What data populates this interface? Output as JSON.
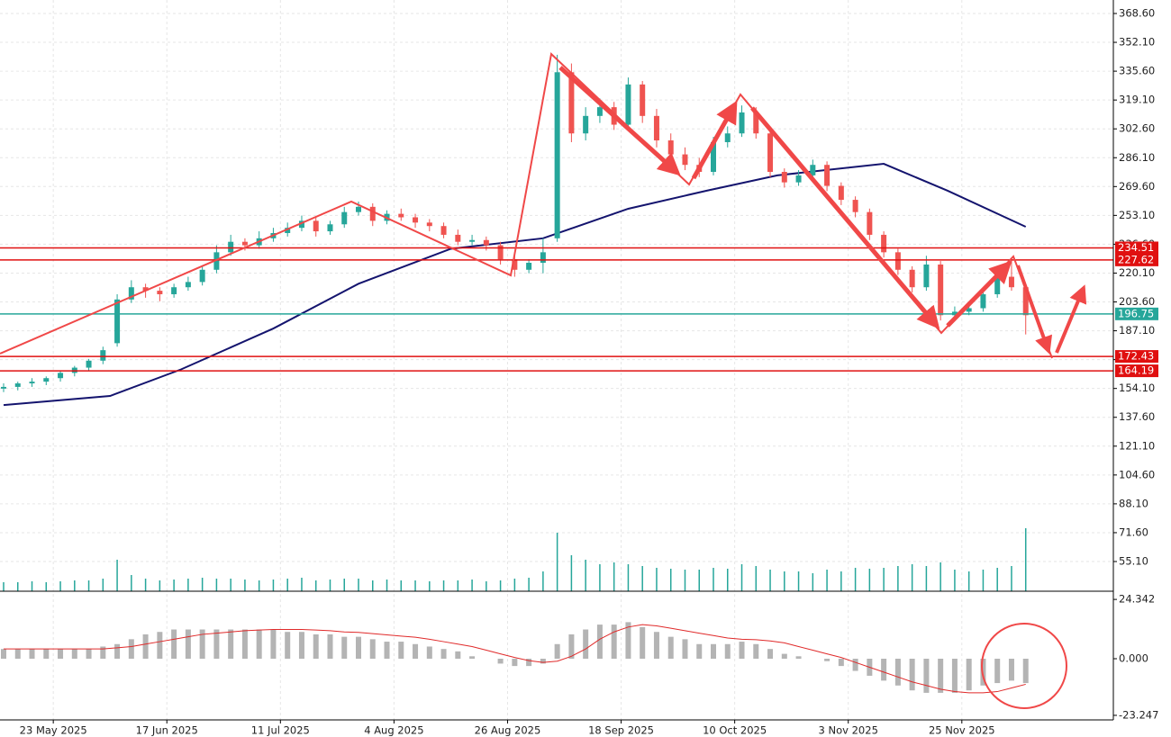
{
  "chart_data": {
    "type": "candlestick",
    "x": [
      0,
      2,
      4,
      6,
      8,
      10,
      12,
      14,
      16,
      18,
      20,
      22,
      24,
      26,
      28,
      30,
      32,
      34,
      36,
      38,
      40,
      42,
      44,
      46,
      48,
      50,
      52,
      54,
      56,
      58,
      60,
      62,
      64,
      66,
      68,
      70,
      72,
      74,
      76,
      78,
      80,
      82,
      84,
      86,
      88,
      90,
      92,
      94,
      96,
      98,
      100,
      102,
      104,
      106,
      108,
      110,
      112,
      114,
      116,
      118,
      120,
      122,
      124,
      126,
      128,
      130,
      132,
      134,
      136,
      138,
      140,
      142,
      144
    ],
    "candles": [
      [
        154,
        157,
        152,
        155
      ],
      [
        155,
        158,
        153,
        157
      ],
      [
        157,
        160,
        155,
        158
      ],
      [
        158,
        161,
        156,
        160
      ],
      [
        160,
        164,
        158,
        163
      ],
      [
        163,
        167,
        161,
        166
      ],
      [
        166,
        171,
        164,
        170
      ],
      [
        170,
        178,
        168,
        176
      ],
      [
        180,
        208,
        178,
        205
      ],
      [
        205,
        216,
        203,
        212
      ],
      [
        212,
        214,
        206,
        210
      ],
      [
        210,
        212,
        204,
        208
      ],
      [
        208,
        214,
        206,
        212
      ],
      [
        212,
        218,
        210,
        215
      ],
      [
        215,
        224,
        213,
        222
      ],
      [
        222,
        236,
        220,
        232
      ],
      [
        232,
        242,
        230,
        238
      ],
      [
        238,
        240,
        233,
        236
      ],
      [
        236,
        244,
        234,
        240
      ],
      [
        240,
        246,
        238,
        243
      ],
      [
        243,
        249,
        241,
        246
      ],
      [
        246,
        253,
        244,
        250
      ],
      [
        250,
        252,
        241,
        244
      ],
      [
        244,
        250,
        242,
        248
      ],
      [
        248,
        258,
        246,
        255
      ],
      [
        255,
        261,
        253,
        258
      ],
      [
        258,
        260,
        247,
        250
      ],
      [
        250,
        256,
        248,
        254
      ],
      [
        254,
        257,
        250,
        252
      ],
      [
        252,
        254,
        246,
        249
      ],
      [
        249,
        251,
        244,
        247
      ],
      [
        247,
        249,
        240,
        242
      ],
      [
        242,
        245,
        236,
        238
      ],
      [
        238,
        242,
        236,
        239
      ],
      [
        239,
        241,
        233,
        236
      ],
      [
        236,
        238,
        225,
        228
      ],
      [
        228,
        232,
        218,
        222
      ],
      [
        222,
        228,
        220,
        226
      ],
      [
        226,
        240,
        220,
        232
      ],
      [
        240,
        345,
        238,
        335
      ],
      [
        335,
        340,
        295,
        300
      ],
      [
        300,
        315,
        296,
        310
      ],
      [
        310,
        320,
        306,
        315
      ],
      [
        315,
        318,
        302,
        305
      ],
      [
        305,
        332,
        303,
        328
      ],
      [
        328,
        330,
        306,
        310
      ],
      [
        310,
        314,
        292,
        296
      ],
      [
        296,
        300,
        285,
        288
      ],
      [
        288,
        292,
        279,
        282
      ],
      [
        282,
        286,
        275,
        278
      ],
      [
        278,
        298,
        276,
        295
      ],
      [
        295,
        304,
        292,
        300
      ],
      [
        300,
        316,
        298,
        312
      ],
      [
        312,
        315,
        297,
        300
      ],
      [
        300,
        302,
        275,
        278
      ],
      [
        278,
        280,
        269,
        272
      ],
      [
        272,
        279,
        270,
        276
      ],
      [
        276,
        285,
        274,
        282
      ],
      [
        282,
        284,
        267,
        270
      ],
      [
        270,
        272,
        259,
        262
      ],
      [
        262,
        264,
        252,
        255
      ],
      [
        255,
        257,
        239,
        242
      ],
      [
        242,
        244,
        229,
        232
      ],
      [
        232,
        234,
        219,
        222
      ],
      [
        222,
        224,
        209,
        212
      ],
      [
        212,
        230,
        210,
        225
      ],
      [
        225,
        227,
        193,
        196
      ],
      [
        196,
        201,
        193,
        198
      ],
      [
        198,
        203,
        196,
        200
      ],
      [
        200,
        210,
        198,
        208
      ],
      [
        208,
        220,
        206,
        218
      ],
      [
        218,
        228,
        210,
        212
      ],
      [
        212,
        214,
        185,
        196
      ]
    ],
    "up_color": "#26a69a",
    "down_color": "#ef5350",
    "ylim": [
      38.11,
      376.32
    ],
    "yticks": [
      {
        "value": 368.6,
        "label": "368.60"
      },
      {
        "value": 352.1,
        "label": "352.10"
      },
      {
        "value": 335.6,
        "label": "335.60"
      },
      {
        "value": 319.1,
        "label": "319.10"
      },
      {
        "value": 302.6,
        "label": "302.60"
      },
      {
        "value": 286.1,
        "label": "286.10"
      },
      {
        "value": 269.6,
        "label": "269.60"
      },
      {
        "value": 253.1,
        "label": "253.10"
      },
      {
        "value": 236.6,
        "label": "236.60"
      },
      {
        "value": 220.1,
        "label": "220.10"
      },
      {
        "value": 203.6,
        "label": "203.60"
      },
      {
        "value": 187.1,
        "label": "187.10"
      },
      {
        "value": 170.6,
        "label": "170.60"
      },
      {
        "value": 154.1,
        "label": "154.10"
      },
      {
        "value": 137.6,
        "label": "137.60"
      },
      {
        "value": 121.1,
        "label": "121.10"
      },
      {
        "value": 104.6,
        "label": "104.60"
      },
      {
        "value": 88.1,
        "label": "88.10"
      },
      {
        "value": 71.6,
        "label": "71.60"
      },
      {
        "value": 55.1,
        "label": "55.10"
      }
    ],
    "xlim": [
      -0.5,
      155
    ],
    "xticks": [
      {
        "value": 7,
        "label": "23 May 2025"
      },
      {
        "value": 23,
        "label": "17 Jun 2025"
      },
      {
        "value": 39,
        "label": "11 Jul 2025"
      },
      {
        "value": 55,
        "label": "4 Aug 2025"
      },
      {
        "value": 71,
        "label": "26 Aug 2025"
      },
      {
        "value": 87,
        "label": "18 Sep 2025"
      },
      {
        "value": 103,
        "label": "10 Oct 2025"
      },
      {
        "value": 119,
        "label": "3 Nov 2025"
      },
      {
        "value": 135,
        "label": "25 Nov 2025"
      }
    ],
    "grid": true,
    "ma": {
      "color": "#14146e",
      "x": [
        0,
        15,
        25,
        38,
        50,
        63,
        76,
        88,
        99,
        109,
        124,
        133,
        144
      ],
      "values": [
        144.6,
        149.8,
        165,
        188.4,
        214,
        234,
        240,
        256.9,
        267.2,
        276,
        282.6,
        267.2,
        246.6
      ]
    },
    "volume": {
      "color": "#26a69a",
      "ylim": [
        0,
        100
      ],
      "values": [
        10,
        10,
        11,
        10,
        11,
        12,
        12,
        14,
        35,
        18,
        14,
        12,
        13,
        14,
        15,
        14,
        14,
        13,
        12,
        13,
        14,
        15,
        12,
        13,
        14,
        14,
        12,
        13,
        12,
        12,
        11,
        12,
        12,
        13,
        11,
        12,
        14,
        15,
        22,
        65,
        40,
        35,
        30,
        32,
        30,
        28,
        26,
        25,
        24,
        24,
        26,
        25,
        30,
        28,
        24,
        22,
        22,
        20,
        24,
        22,
        26,
        25,
        26,
        28,
        30,
        28,
        32,
        24,
        22,
        24,
        26,
        28,
        70
      ]
    },
    "macd": {
      "ylim": [
        -25.12,
        27.34
      ],
      "yticks": [
        24.342,
        {
          "value": 0,
          "label": "0.000"
        },
        -23.247
      ],
      "histogram_color": "#b4b4b4",
      "signal_color": "#e02a2a",
      "histogram": [
        4,
        4,
        4,
        4,
        4,
        4,
        4,
        5,
        6,
        8,
        10,
        11,
        12,
        12,
        12,
        12,
        12,
        12,
        12,
        12,
        11,
        11,
        10,
        10,
        9,
        9,
        8,
        7,
        7,
        6,
        5,
        4,
        3,
        1,
        0,
        -2,
        -3,
        -3,
        -2,
        6,
        10,
        12,
        14,
        14,
        15,
        13,
        11,
        9,
        8,
        6,
        6,
        6,
        7,
        6,
        4,
        2,
        1,
        0,
        -1,
        -3,
        -5,
        -7,
        -9,
        -11,
        -13,
        -14,
        -14,
        -14,
        -13,
        -11,
        -10,
        -9,
        -10
      ],
      "signal": [
        4,
        4,
        4,
        4,
        4,
        4,
        4,
        4,
        4.5,
        5,
        6,
        7,
        8,
        9,
        10,
        10.5,
        11,
        11.5,
        11.8,
        12,
        12,
        12,
        11.8,
        11.5,
        11,
        10.8,
        10.3,
        9.8,
        9.3,
        8.8,
        8,
        7,
        6,
        5,
        3.5,
        2,
        0.5,
        -0.8,
        -1.5,
        -1,
        1,
        4,
        8,
        11,
        13,
        14,
        13.5,
        12.5,
        11.5,
        10.5,
        9.5,
        8.5,
        8,
        7.8,
        7.3,
        6.5,
        5,
        3.5,
        2,
        0.5,
        -1.5,
        -3.5,
        -5.5,
        -7.5,
        -9.5,
        -11,
        -12.5,
        -13.5,
        -14,
        -14,
        -13.5,
        -12,
        -10.5
      ]
    },
    "levels": [
      {
        "value": 234.51,
        "color": "#e01010"
      },
      {
        "value": 227.62,
        "color": "#e01010"
      },
      {
        "value": 196.75,
        "color": "#26a69a"
      },
      {
        "value": 172.43,
        "color": "#e01010"
      },
      {
        "value": 164.19,
        "color": "#e01010"
      }
    ]
  }
}
